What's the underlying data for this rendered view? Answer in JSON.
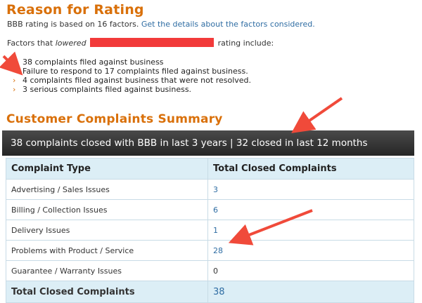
{
  "rating": {
    "title": "Reason for Rating",
    "based_on": "BBB rating is based on 16 factors.",
    "details_link": "Get the details about the factors considered.",
    "factors_prefix": "Factors that ",
    "factors_italic": "lowered",
    "factors_suffix": "rating include:",
    "factors": [
      {
        "text": "38 complaints filed against business",
        "chevron": false
      },
      {
        "text": "Failure to respond to 17 complaints filed against business.",
        "chevron": false
      },
      {
        "text": "4 complaints filed against business that were not resolved.",
        "chevron": true
      },
      {
        "text": "3 serious complaints filed against business.",
        "chevron": true
      }
    ]
  },
  "summary": {
    "title": "Customer Complaints Summary",
    "bar_text": "38 complaints closed with BBB in last 3 years | 32 closed in last 12 months",
    "headers": [
      "Complaint Type",
      "Total Closed Complaints"
    ],
    "rows": [
      {
        "type": "Advertising / Sales Issues",
        "count": "3",
        "link": true
      },
      {
        "type": "Billing / Collection Issues",
        "count": "6",
        "link": true
      },
      {
        "type": "Delivery Issues",
        "count": "1",
        "link": true
      },
      {
        "type": "Problems with Product / Service",
        "count": "28",
        "link": true
      },
      {
        "type": "Guarantee / Warranty Issues",
        "count": "0",
        "link": false
      }
    ],
    "total_label": "Total Closed Complaints",
    "total_count": "38"
  },
  "colors": {
    "accent": "#d9700a",
    "link": "#2f6da3",
    "arrow": "#f04a3a",
    "redact": "#f23a3a"
  }
}
